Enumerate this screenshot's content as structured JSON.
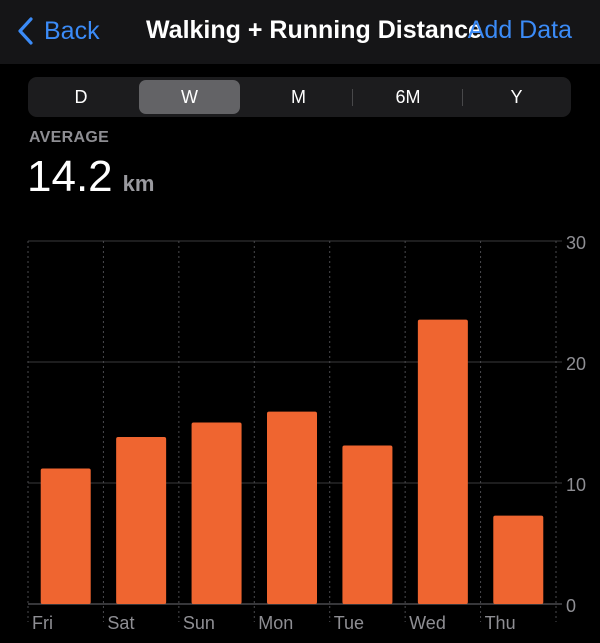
{
  "navbar": {
    "back_label": "Back",
    "title": "Walking + Running Distance",
    "add_data_label": "Add Data"
  },
  "segments": [
    {
      "label": "D",
      "selected": false
    },
    {
      "label": "W",
      "selected": true
    },
    {
      "label": "M",
      "selected": false
    },
    {
      "label": "6M",
      "selected": false
    },
    {
      "label": "Y",
      "selected": false
    }
  ],
  "summary": {
    "label": "AVERAGE",
    "value": "14.2",
    "unit": "km"
  },
  "colors": {
    "accent_blue": "#3b8bf7",
    "bar": "#ef6530",
    "background": "#000000"
  },
  "chart_data": {
    "type": "bar",
    "categories": [
      "Fri",
      "Sat",
      "Sun",
      "Mon",
      "Tue",
      "Wed",
      "Thu"
    ],
    "values": [
      11.2,
      13.8,
      15.0,
      15.9,
      13.1,
      23.5,
      7.3
    ],
    "y_ticks": [
      "0",
      "10",
      "20",
      "30"
    ],
    "ylim": [
      0,
      30
    ],
    "grid": true,
    "y_axis_side": "right"
  }
}
